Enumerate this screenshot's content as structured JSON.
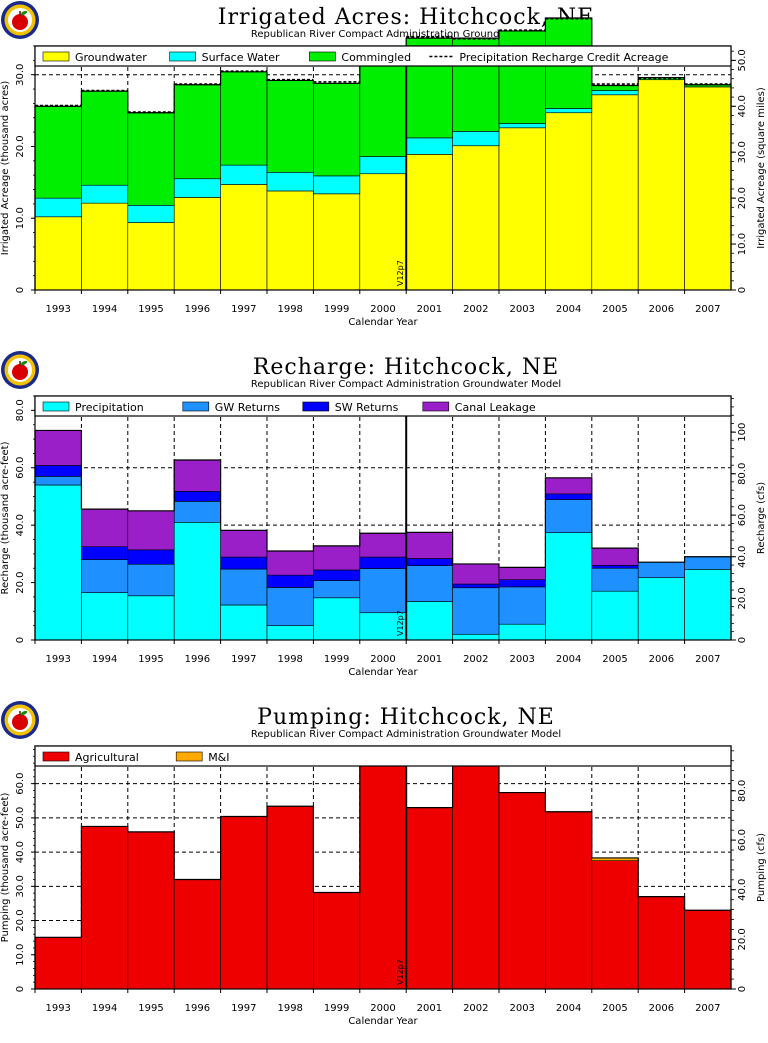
{
  "subtitle": "Republican River Compact Administration Groundwater Model",
  "colors": {
    "groundwater": "#ffff00",
    "surface_water": "#00ffff",
    "commingled": "#00ee00",
    "precipitation": "#00ffff",
    "gw_returns": "#1e90ff",
    "sw_returns": "#0000ff",
    "canal_leakage": "#9b1fc8",
    "agricultural": "#ee0000",
    "mi": "#ffaa00"
  },
  "logo": {
    "icon": "apple-seal-icon"
  },
  "chart_data": [
    {
      "type": "bar",
      "stacked": true,
      "title": "Irrigated Acres:  Hitchcock, NE",
      "xlabel": "Calendar Year",
      "ylabel": "Irrigated Acreage (thousand acres)",
      "ylabel_right": "Irrigated Acreage (square miles)",
      "ylim": [
        0,
        34
      ],
      "yticks": [
        {
          "v": 0,
          "label": "0"
        },
        {
          "v": 10,
          "label": "10.0"
        },
        {
          "v": 20,
          "label": "20.0"
        },
        {
          "v": 30,
          "label": "30.0"
        }
      ],
      "yticks_right": [
        {
          "v": 0,
          "label": "0"
        },
        {
          "v": 6.4,
          "label": "10.0"
        },
        {
          "v": 12.8,
          "label": "20.0"
        },
        {
          "v": 19.2,
          "label": "30.0"
        },
        {
          "v": 25.6,
          "label": "40.0"
        },
        {
          "v": 32.0,
          "label": "50.0"
        }
      ],
      "categories": [
        "1993",
        "1994",
        "1995",
        "1996",
        "1997",
        "1998",
        "1999",
        "2000",
        "2001",
        "2002",
        "2003",
        "2004",
        "2005",
        "2006",
        "2007"
      ],
      "series": [
        {
          "name": "Groundwater",
          "color_key": "groundwater",
          "values": [
            10.2,
            12.1,
            9.4,
            12.9,
            14.7,
            13.8,
            13.4,
            16.2,
            18.9,
            20.1,
            22.6,
            24.7,
            27.2,
            29.3,
            28.3
          ]
        },
        {
          "name": "Surface Water",
          "color_key": "surface_water",
          "values": [
            2.6,
            2.5,
            2.4,
            2.6,
            2.7,
            2.6,
            2.5,
            2.4,
            2.3,
            2.0,
            0.6,
            0.6,
            0.6,
            0.0,
            0.0
          ]
        },
        {
          "name": "Commingled",
          "color_key": "commingled",
          "values": [
            12.8,
            13.1,
            12.9,
            13.1,
            13.0,
            12.8,
            12.9,
            12.9,
            13.9,
            13.0,
            12.9,
            12.6,
            0.7,
            0.3,
            0.3
          ]
        }
      ],
      "lines": [
        {
          "name": "Precipitation Recharge Credit Acreage",
          "style": "dashed",
          "values": [
            25.7,
            27.8,
            24.8,
            28.7,
            30.5,
            29.3,
            29.0,
            31.6,
            35.3,
            35.0,
            36.2,
            37.8,
            28.7,
            29.5,
            28.7
          ]
        }
      ],
      "annotation": "V12p7"
    },
    {
      "type": "bar",
      "stacked": true,
      "title": "Recharge:  Hitchcock, NE",
      "xlabel": "Calendar Year",
      "ylabel": "Recharge (thousand acre-feet)",
      "ylabel_right": "Recharge (cfs)",
      "ylim": [
        0,
        85
      ],
      "yticks": [
        {
          "v": 0,
          "label": "0"
        },
        {
          "v": 20,
          "label": "20.0"
        },
        {
          "v": 40,
          "label": "40.0"
        },
        {
          "v": 60,
          "label": "60.0"
        },
        {
          "v": 80,
          "label": "80.0"
        }
      ],
      "yticks_right": [
        {
          "v": 0,
          "label": "0"
        },
        {
          "v": 14.5,
          "label": "20.0"
        },
        {
          "v": 29.0,
          "label": "40.0"
        },
        {
          "v": 43.5,
          "label": "60.0"
        },
        {
          "v": 57.9,
          "label": "80.0"
        },
        {
          "v": 72.4,
          "label": "100"
        }
      ],
      "categories": [
        "1993",
        "1994",
        "1995",
        "1996",
        "1997",
        "1998",
        "1999",
        "2000",
        "2001",
        "2002",
        "2003",
        "2004",
        "2005",
        "2006",
        "2007"
      ],
      "series": [
        {
          "name": "Precipitation",
          "color_key": "precipitation",
          "values": [
            54.0,
            16.5,
            15.4,
            41.0,
            12.2,
            5.0,
            14.7,
            9.5,
            13.4,
            2.0,
            5.5,
            37.4,
            17.0,
            21.7,
            24.6
          ]
        },
        {
          "name": "GW Returns",
          "color_key": "gw_returns",
          "values": [
            3.0,
            11.5,
            11.0,
            7.3,
            12.5,
            13.3,
            6.0,
            15.4,
            12.5,
            16.2,
            13.0,
            11.5,
            8.0,
            5.4,
            4.4
          ]
        },
        {
          "name": "SW Returns",
          "color_key": "sw_returns",
          "values": [
            3.8,
            4.5,
            5.0,
            3.5,
            4.2,
            4.3,
            3.7,
            4.0,
            2.5,
            1.3,
            2.5,
            2.0,
            1.0,
            0.0,
            0.0
          ]
        },
        {
          "name": "Canal Leakage",
          "color_key": "canal_leakage",
          "values": [
            12.2,
            13.1,
            13.6,
            10.9,
            9.3,
            8.4,
            8.4,
            8.3,
            9.1,
            7.0,
            4.3,
            5.6,
            6.0,
            0.0,
            0.0
          ]
        }
      ],
      "annotation": "V12p7"
    },
    {
      "type": "bar",
      "stacked": true,
      "title": "Pumping:  Hitchcock, NE",
      "xlabel": "Calendar Year",
      "ylabel": "Pumping (thousand acre-feet)",
      "ylabel_right": "Pumping (cfs)",
      "ylim": [
        0,
        71
      ],
      "yticks": [
        {
          "v": 0,
          "label": "0"
        },
        {
          "v": 10,
          "label": "10.0"
        },
        {
          "v": 20,
          "label": "20.0"
        },
        {
          "v": 30,
          "label": "30.0"
        },
        {
          "v": 40,
          "label": "40.0"
        },
        {
          "v": 50,
          "label": "50.0"
        },
        {
          "v": 60,
          "label": "60.0"
        }
      ],
      "yticks_right": [
        {
          "v": 0,
          "label": "0"
        },
        {
          "v": 14.5,
          "label": "20.0"
        },
        {
          "v": 29.0,
          "label": "40.0"
        },
        {
          "v": 43.5,
          "label": "60.0"
        },
        {
          "v": 57.9,
          "label": "80.0"
        }
      ],
      "categories": [
        "1993",
        "1994",
        "1995",
        "1996",
        "1997",
        "1998",
        "1999",
        "2000",
        "2001",
        "2002",
        "2003",
        "2004",
        "2005",
        "2006",
        "2007"
      ],
      "series": [
        {
          "name": "Agricultural",
          "color_key": "agricultural",
          "values": [
            15.1,
            47.5,
            45.9,
            32.0,
            50.4,
            53.4,
            28.2,
            66.1,
            53.0,
            70.0,
            57.4,
            51.8,
            37.5,
            27.0,
            23.0
          ]
        },
        {
          "name": "M&I",
          "color_key": "mi",
          "values": [
            0.0,
            0.0,
            0.0,
            0.0,
            0.0,
            0.0,
            0.0,
            0.0,
            0.0,
            0.0,
            0.0,
            0.0,
            0.8,
            0.0,
            0.0
          ]
        }
      ],
      "annotation": "V12p7"
    }
  ]
}
